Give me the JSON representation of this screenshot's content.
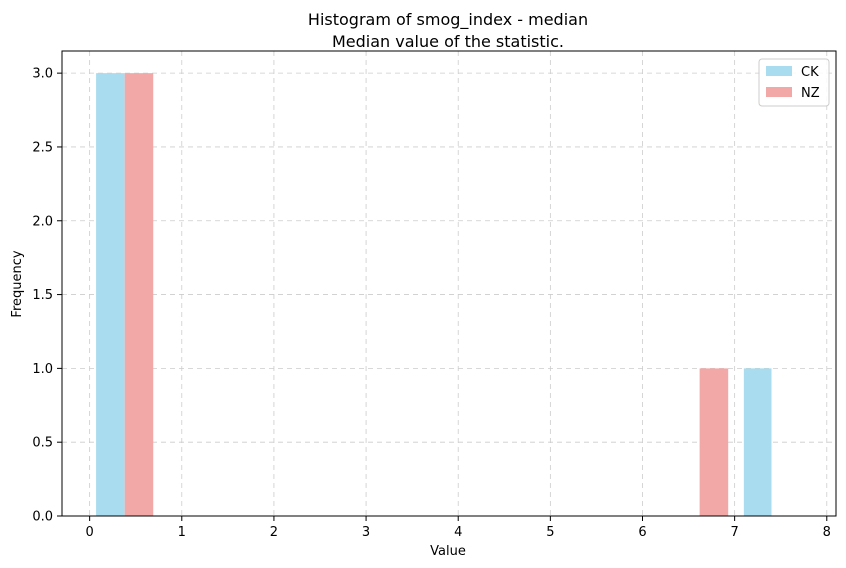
{
  "chart_data": {
    "type": "bar",
    "title": "Histogram of smog_index - median",
    "subtitle": "Median value of the statistic.",
    "xlabel": "Value",
    "ylabel": "Frequency",
    "xlim": [
      -0.3,
      8.1
    ],
    "ylim": [
      0,
      3.15
    ],
    "xticks": [
      0,
      1,
      2,
      3,
      4,
      5,
      6,
      7,
      8
    ],
    "yticks": [
      0.0,
      0.5,
      1.0,
      1.5,
      2.0,
      2.5,
      3.0
    ],
    "ytick_labels": [
      "0.0",
      "0.5",
      "1.0",
      "1.5",
      "2.0",
      "2.5",
      "3.0"
    ],
    "grid": true,
    "legend_position": "top-right",
    "series": [
      {
        "name": "CK",
        "color": "#a8dcee",
        "bars": [
          {
            "x0": 0.07,
            "x1": 0.38,
            "value": 3
          },
          {
            "x0": 7.1,
            "x1": 7.4,
            "value": 1
          }
        ]
      },
      {
        "name": "NZ",
        "color": "#f3a8a8",
        "bars": [
          {
            "x0": 0.38,
            "x1": 0.69,
            "value": 3
          },
          {
            "x0": 6.62,
            "x1": 6.93,
            "value": 1
          }
        ]
      }
    ]
  }
}
